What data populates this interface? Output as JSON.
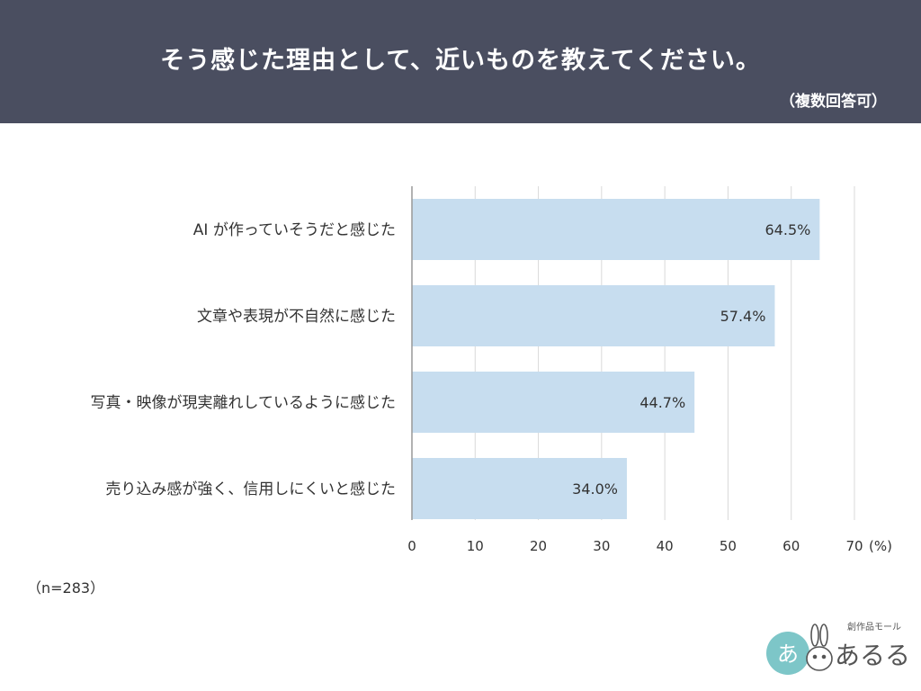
{
  "header": {
    "title": "そう感じた理由として、近いものを教えてください。",
    "subtitle": "（複数回答可）"
  },
  "sample_note": "（n=283）",
  "logo": {
    "name": "創作品モール あるる",
    "tagline": "創作品モール",
    "wordmark": "あるる",
    "mark": "あ"
  },
  "colors": {
    "header_bg": "#4a4e60",
    "bar": "#c7ddef",
    "grid": "#d9d9d9",
    "axis": "#999999"
  },
  "chart_data": {
    "type": "bar",
    "orientation": "horizontal",
    "categories": [
      "AI が作っていそうだと感じた",
      "文章や表現が不自然に感じた",
      "写真・映像が現実離れしているように感じた",
      "売り込み感が強く、信用しにくいと感じた"
    ],
    "values": [
      64.5,
      57.4,
      44.7,
      34.0
    ],
    "value_labels": [
      "64.5%",
      "57.4%",
      "44.7%",
      "34.0%"
    ],
    "xlim": [
      0,
      70
    ],
    "xticks": [
      0,
      10,
      20,
      30,
      40,
      50,
      60,
      70
    ],
    "xunit": "(%)",
    "grid": true
  }
}
